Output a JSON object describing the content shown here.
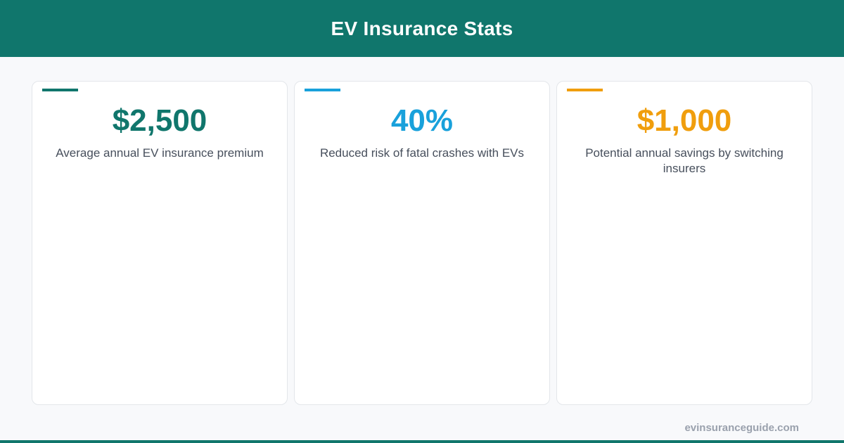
{
  "header": {
    "title": "EV Insurance Stats",
    "background": "#10766c"
  },
  "cards": [
    {
      "value": "$2,500",
      "label": "Average annual EV insurance premium",
      "accent_color": "#10766c"
    },
    {
      "value": "40%",
      "label": "Reduced risk of fatal crashes with EVs",
      "accent_color": "#19a1db"
    },
    {
      "value": "$1,000",
      "label": "Potential annual savings by switching insurers",
      "accent_color": "#f09e0d"
    }
  ],
  "footer": {
    "site": "evinsuranceguide.com",
    "bar_color": "#10766c"
  }
}
